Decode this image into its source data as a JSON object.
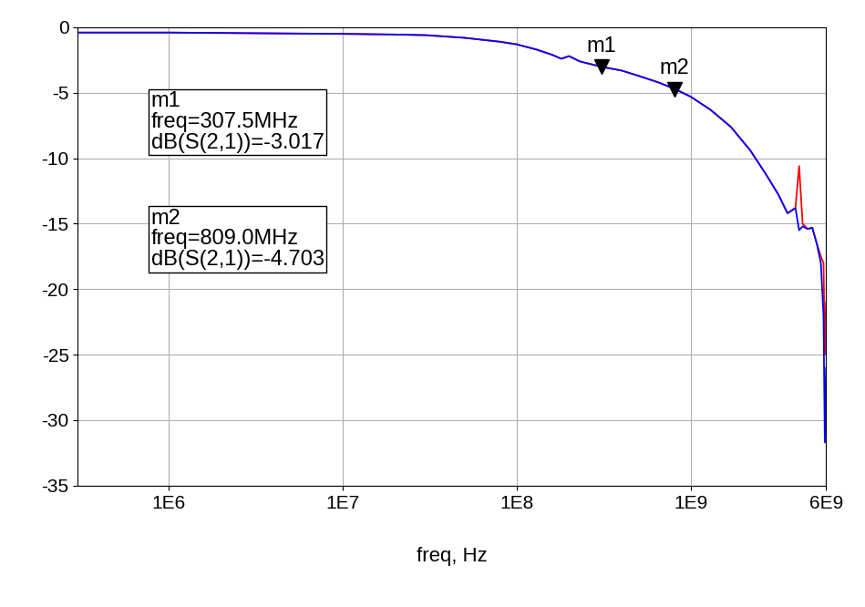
{
  "chart_data": {
    "type": "line",
    "x_label": "freq, Hz",
    "log": "x",
    "grid": true,
    "x": [
      300000,
      1000000,
      3000000,
      10000000,
      20000000,
      30000000,
      50000000,
      80000000,
      100000000,
      130000000,
      160000000,
      180000000,
      200000000,
      230000000,
      307500000,
      400000000,
      500000000,
      650000000,
      809000000,
      1000000000,
      1300000000,
      1700000000,
      2200000000,
      2700000000,
      3200000000,
      3600000000,
      4000000000,
      4200000000,
      4400000000,
      4700000000,
      5000000000,
      5300000000,
      5600000000,
      5800000000,
      5900000000,
      6000000000
    ],
    "series": [
      {
        "color": "#ff0000",
        "values": [
          -0.4,
          -0.4,
          -0.45,
          -0.5,
          -0.55,
          -0.6,
          -0.8,
          -1.1,
          -1.3,
          -1.7,
          -2.1,
          -2.4,
          -2.2,
          -2.6,
          -3.017,
          -3.3,
          -3.7,
          -4.2,
          -4.703,
          -5.3,
          -6.3,
          -7.6,
          -9.4,
          -11.2,
          -12.8,
          -14.2,
          -13.8,
          -10.6,
          -15.0,
          -15.4,
          -15.3,
          -16.5,
          -17.5,
          -18.0,
          -25.0,
          -21.0
        ]
      },
      {
        "color": "#0000ff",
        "values": [
          -0.4,
          -0.4,
          -0.45,
          -0.5,
          -0.55,
          -0.6,
          -0.8,
          -1.1,
          -1.3,
          -1.7,
          -2.1,
          -2.4,
          -2.2,
          -2.6,
          -3.017,
          -3.3,
          -3.7,
          -4.2,
          -4.703,
          -5.3,
          -6.3,
          -7.6,
          -9.4,
          -11.2,
          -12.8,
          -14.2,
          -13.8,
          -15.5,
          -15.2,
          -15.4,
          -15.3,
          -16.5,
          -18.0,
          -22.0,
          -31.7,
          -26.0
        ]
      }
    ],
    "xlim": [
      300000,
      6000000000
    ],
    "xticks": [
      {
        "value": 1000000,
        "label": "1E6"
      },
      {
        "value": 10000000,
        "label": "1E7"
      },
      {
        "value": 100000000,
        "label": "1E8"
      },
      {
        "value": 1000000000,
        "label": "1E9"
      },
      {
        "value": 6000000000,
        "label": "6E9"
      }
    ],
    "ylim": [
      -35,
      0
    ],
    "yticks": [
      -35,
      -30,
      -25,
      -20,
      -15,
      -10,
      -5,
      0
    ],
    "annotations": [
      {
        "label": "m1",
        "x": 307500000,
        "y": -3.017,
        "text": [
          "m1",
          "freq=307.5MHz",
          "dB(S(2,1))=-3.017"
        ]
      },
      {
        "label": "m2",
        "x": 809000000,
        "y": -4.703,
        "text": [
          "m2",
          "freq=809.0MHz",
          "dB(S(2,1))=-4.703"
        ]
      }
    ]
  }
}
